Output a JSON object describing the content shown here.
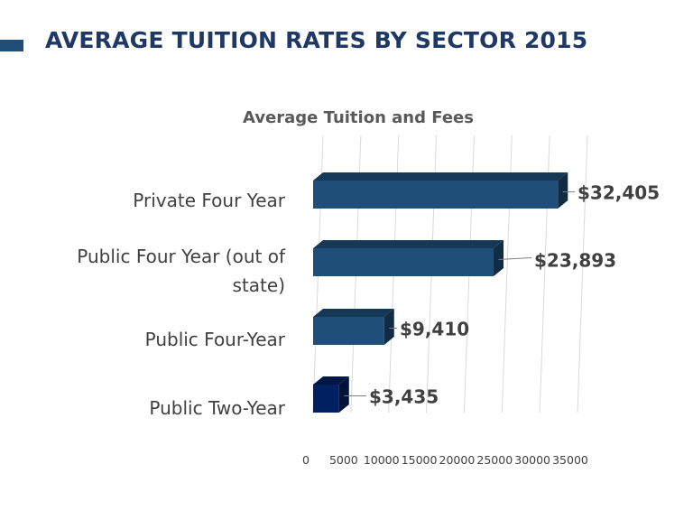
{
  "slide": {
    "title": "AVERAGE TUITION RATES BY SECTOR 2015",
    "accent_color": "#1f4e79",
    "title_color": "#1f3864"
  },
  "chart_data": {
    "type": "bar",
    "orientation": "horizontal",
    "style": "3d",
    "title": "Average Tuition and Fees",
    "categories": [
      "Private Four Year",
      "Public Four Year (out of state)",
      "Public Four-Year",
      "Public Two-Year"
    ],
    "category_label_lines": [
      [
        "Private Four Year"
      ],
      [
        "Public Four Year (out of",
        "state)"
      ],
      [
        "Public Four-Year"
      ],
      [
        "Public Two-Year"
      ]
    ],
    "values": [
      32405,
      23893,
      9410,
      3435
    ],
    "data_labels": [
      "$32,405",
      "$23,893",
      "$9,410",
      "$3,435"
    ],
    "bar_colors": [
      "#1f4e79",
      "#1f4e79",
      "#1f4e79",
      "#002060"
    ],
    "xlim": [
      0,
      35000
    ],
    "x_ticks": [
      "0",
      "5000",
      "10000",
      "15000",
      "20000",
      "25000",
      "30000",
      "35000"
    ],
    "grid": true,
    "legend": "none"
  }
}
